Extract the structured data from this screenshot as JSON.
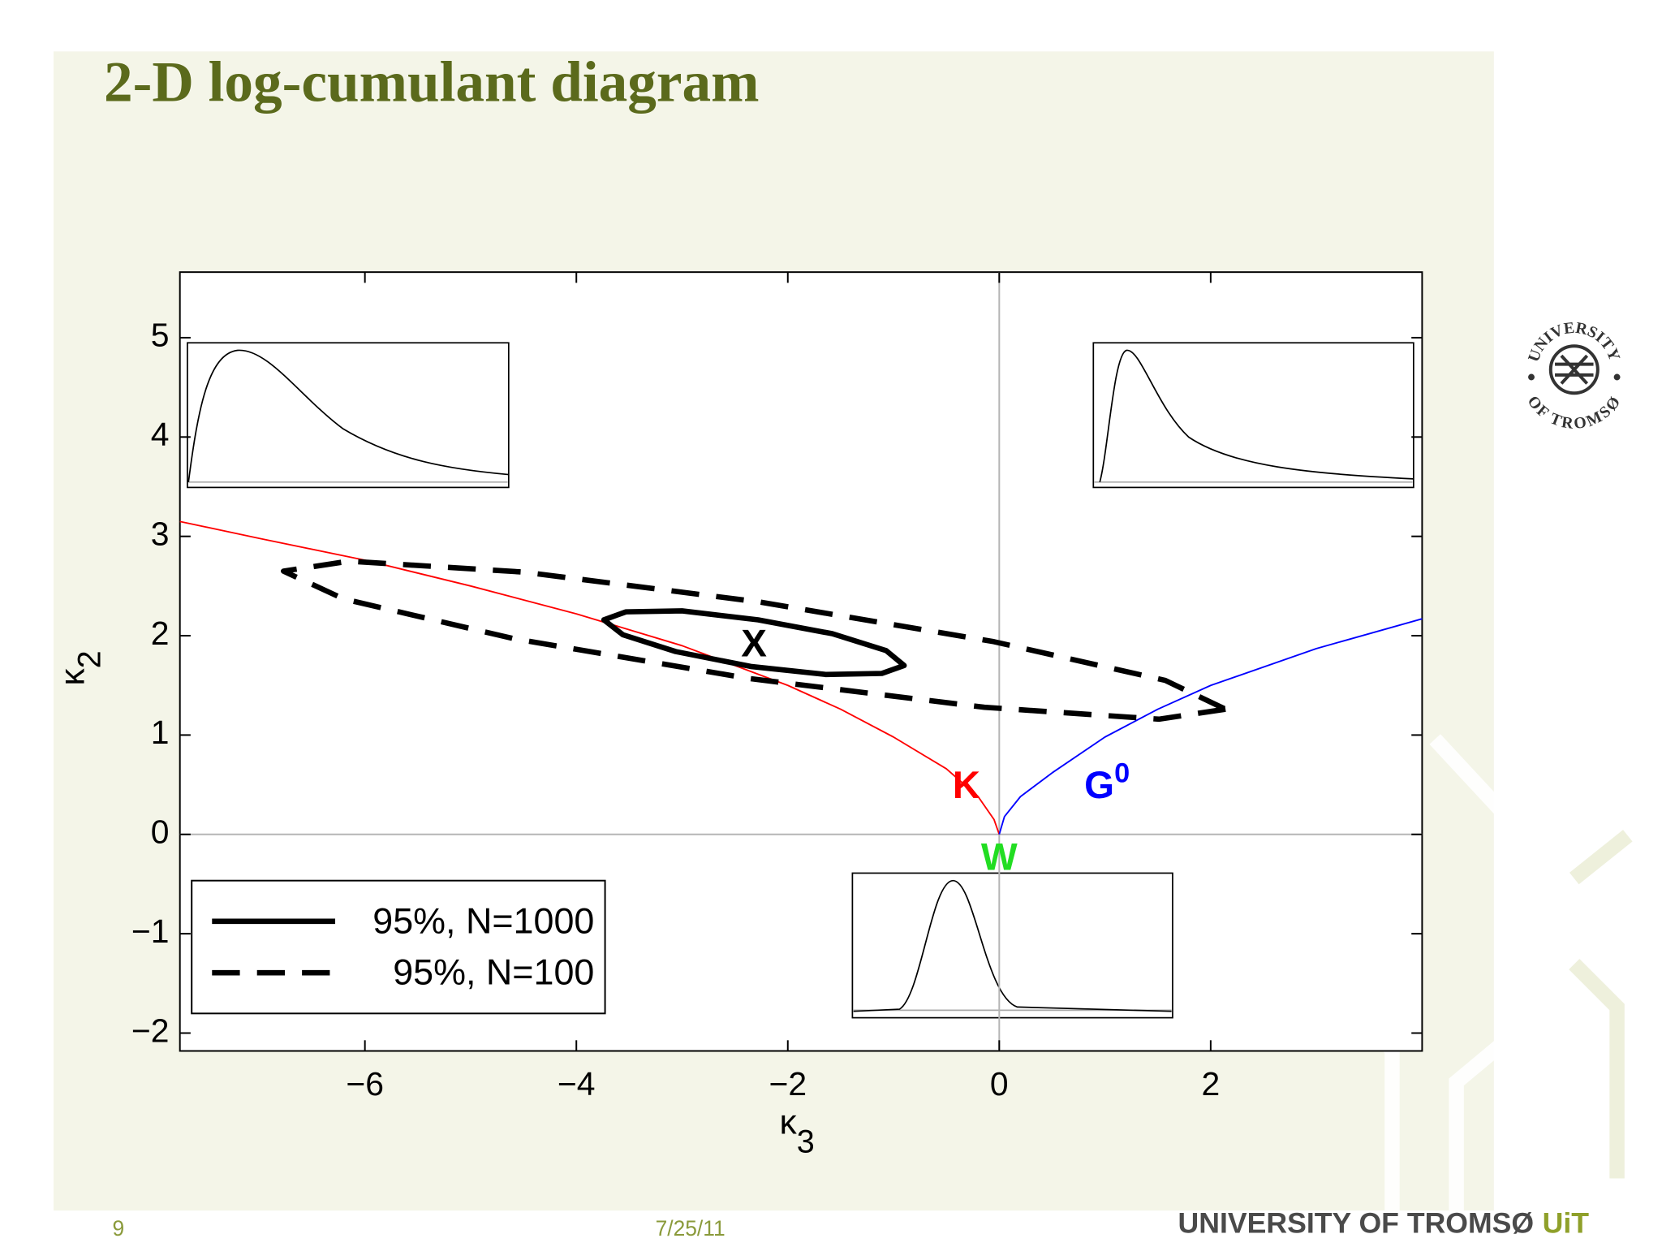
{
  "slide": {
    "title": "2-D log-cumulant diagram",
    "page_number": "9",
    "date": "7/25/11",
    "footer_brand": "UNIVERSITY OF TROMSØ",
    "footer_mark": "UiT",
    "logo": {
      "top": "UNIVERSITY",
      "bottom": "OF TROMSØ"
    }
  },
  "chart_data": {
    "type": "line",
    "xlabel": {
      "text": "κ",
      "sub": "3"
    },
    "ylabel": {
      "text": "κ",
      "sub": "2"
    },
    "xlim": [
      -7.75,
      4
    ],
    "ylim": [
      -2.18,
      5.66
    ],
    "xticks": [
      {
        "value": -6,
        "label": "−6"
      },
      {
        "value": -4,
        "label": "−4"
      },
      {
        "value": -2,
        "label": "−2"
      },
      0,
      2
    ],
    "yticks": [
      {
        "value": -2,
        "label": "−2"
      },
      {
        "value": -1,
        "label": "−1"
      },
      0,
      1,
      2,
      3,
      4,
      5
    ],
    "zero_lines": true,
    "grid": false,
    "legend": "lower left",
    "series": [
      {
        "color": "#ff0000",
        "dash": "solid",
        "closed": false,
        "x": [
          -7.75,
          -7,
          -6,
          -5,
          -4,
          -3,
          -2,
          -1.5,
          -1,
          -0.5,
          -0.2,
          -0.05,
          0
        ],
        "y": [
          3.15,
          2.98,
          2.76,
          2.5,
          2.22,
          1.9,
          1.5,
          1.26,
          0.98,
          0.66,
          0.38,
          0.15,
          0
        ]
      },
      {
        "color": "#0000ff",
        "dash": "solid",
        "closed": false,
        "x": [
          0,
          0.05,
          0.2,
          0.5,
          1,
          1.5,
          2,
          3,
          4
        ],
        "y": [
          0,
          0.18,
          0.38,
          0.62,
          0.98,
          1.26,
          1.5,
          1.87,
          2.17
        ]
      },
      {
        "name": "95%, N=1000",
        "color": "#000000",
        "dash": "solid",
        "closed": true,
        "x": [
          -0.9,
          -1.11,
          -1.64,
          -2.35,
          -3.06,
          -3.56,
          -3.74,
          -3.53,
          -3.0,
          -2.28,
          -1.58,
          -1.07
        ],
        "y": [
          1.7,
          1.62,
          1.61,
          1.69,
          1.84,
          2.01,
          2.16,
          2.24,
          2.25,
          2.16,
          2.02,
          1.85
        ]
      },
      {
        "name": "95%, N=100",
        "color": "#000000",
        "dash": "dashed",
        "closed": true,
        "x": [
          2.14,
          1.51,
          -0.14,
          -2.37,
          -4.59,
          -6.2,
          -6.77,
          -6.15,
          -4.5,
          -2.27,
          -0.05,
          1.57
        ],
        "y": [
          1.26,
          1.16,
          1.28,
          1.57,
          1.97,
          2.37,
          2.65,
          2.75,
          2.64,
          2.34,
          1.94,
          1.55
        ]
      }
    ],
    "annotations": [
      {
        "text": "X",
        "x": -2.32,
        "y": 1.9,
        "color": "#000000"
      },
      {
        "text": "K",
        "x": -0.31,
        "y": 0.47,
        "color": "#ff0000"
      },
      {
        "text": "G",
        "sup": "0",
        "x": 1.02,
        "y": 0.47,
        "color": "#0000ff"
      },
      {
        "text": "W",
        "x": 0,
        "y": -0.25,
        "color": "#22dd22"
      }
    ]
  }
}
